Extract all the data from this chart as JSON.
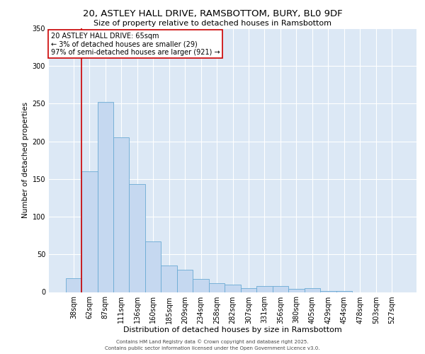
{
  "title_line1": "20, ASTLEY HALL DRIVE, RAMSBOTTOM, BURY, BL0 9DF",
  "title_line2": "Size of property relative to detached houses in Ramsbottom",
  "xlabel": "Distribution of detached houses by size in Ramsbottom",
  "ylabel": "Number of detached properties",
  "categories": [
    "38sqm",
    "62sqm",
    "87sqm",
    "111sqm",
    "136sqm",
    "160sqm",
    "185sqm",
    "209sqm",
    "234sqm",
    "258sqm",
    "282sqm",
    "307sqm",
    "331sqm",
    "356sqm",
    "380sqm",
    "405sqm",
    "429sqm",
    "454sqm",
    "478sqm",
    "503sqm",
    "527sqm"
  ],
  "values": [
    18,
    160,
    252,
    205,
    143,
    67,
    35,
    30,
    17,
    12,
    10,
    5,
    8,
    8,
    4,
    5,
    1,
    1,
    0,
    0,
    0
  ],
  "bar_color": "#c5d8f0",
  "bar_edge_color": "#6aaad4",
  "background_color": "#dce8f5",
  "grid_color": "#ffffff",
  "vline_color": "#cc0000",
  "vline_x_index": 1,
  "annotation_text_line1": "20 ASTLEY HALL DRIVE: 65sqm",
  "annotation_text_line2": "← 3% of detached houses are smaller (29)",
  "annotation_text_line3": "97% of semi-detached houses are larger (921) →",
  "annotation_box_color": "#cc0000",
  "annotation_fill": "#ffffff",
  "footer_line1": "Contains HM Land Registry data © Crown copyright and database right 2025.",
  "footer_line2": "Contains public sector information licensed under the Open Government Licence v3.0.",
  "ylim": [
    0,
    350
  ],
  "title_fontsize": 9.5,
  "subtitle_fontsize": 8,
  "xlabel_fontsize": 8,
  "ylabel_fontsize": 7.5,
  "tick_fontsize": 7,
  "annotation_fontsize": 7,
  "footer_fontsize": 5
}
